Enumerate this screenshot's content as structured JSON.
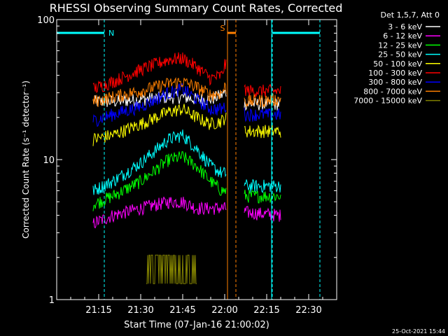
{
  "chart_data": {
    "type": "line",
    "title": "RHESSI Observing Summary Count Rates, Corrected",
    "xlabel": "Start Time (07-Jan-16 21:00:02)",
    "ylabel": "Corrected Count Rate (s⁻¹ detector⁻¹)",
    "yscale": "log",
    "ylim": [
      1,
      100
    ],
    "xlim_minutes": [
      0,
      100
    ],
    "x_ticks": [
      {
        "m": 15,
        "label": "21:15"
      },
      {
        "m": 30,
        "label": "21:30"
      },
      {
        "m": 45,
        "label": "21:45"
      },
      {
        "m": 60,
        "label": "22:00"
      },
      {
        "m": 75,
        "label": "22:15"
      },
      {
        "m": 90,
        "label": "22:30"
      }
    ],
    "y_ticks": [
      {
        "v": 1,
        "label": "1"
      },
      {
        "v": 10,
        "label": "10"
      },
      {
        "v": 100,
        "label": "100"
      }
    ],
    "legend_title": "Det 1,5,7, Att 0",
    "legend_placement": "top-right outside",
    "series": [
      {
        "name": "3 - 6 keV",
        "color": "#ffffff",
        "points": [
          [
            13,
            26
          ],
          [
            20,
            26
          ],
          [
            30,
            27
          ],
          [
            40,
            28
          ],
          [
            45,
            28
          ],
          [
            50,
            27
          ],
          [
            55,
            27
          ],
          [
            59,
            29
          ],
          [
            60,
            30
          ],
          [
            68,
            25
          ],
          [
            80,
            25
          ]
        ]
      },
      {
        "name": "6 - 12 keV",
        "color": "#ff00ff",
        "points": [
          [
            13,
            3.5
          ],
          [
            20,
            4
          ],
          [
            30,
            4.5
          ],
          [
            40,
            5
          ],
          [
            45,
            5
          ],
          [
            50,
            4.5
          ],
          [
            55,
            4.5
          ],
          [
            59,
            4.5
          ],
          [
            60,
            4.5
          ],
          [
            68,
            4.2
          ],
          [
            80,
            4
          ]
        ]
      },
      {
        "name": "12 - 25 keV",
        "color": "#00ff00",
        "points": [
          [
            13,
            4.8
          ],
          [
            20,
            5.5
          ],
          [
            30,
            7
          ],
          [
            40,
            10
          ],
          [
            45,
            10.5
          ],
          [
            50,
            9
          ],
          [
            55,
            7
          ],
          [
            59,
            6
          ],
          [
            60,
            6
          ],
          [
            68,
            5.5
          ],
          [
            80,
            5.5
          ]
        ]
      },
      {
        "name": "25 - 50 keV",
        "color": "#00ffff",
        "points": [
          [
            13,
            6
          ],
          [
            20,
            7
          ],
          [
            30,
            9.5
          ],
          [
            40,
            14
          ],
          [
            45,
            15
          ],
          [
            50,
            12
          ],
          [
            55,
            9
          ],
          [
            59,
            8
          ],
          [
            60,
            8
          ],
          [
            68,
            6.5
          ],
          [
            80,
            6.5
          ]
        ]
      },
      {
        "name": "50 - 100 keV",
        "color": "#ffff00",
        "points": [
          [
            13,
            14
          ],
          [
            20,
            15
          ],
          [
            30,
            18
          ],
          [
            40,
            22
          ],
          [
            45,
            23
          ],
          [
            50,
            20
          ],
          [
            55,
            18
          ],
          [
            59,
            19
          ],
          [
            60,
            20
          ],
          [
            68,
            16
          ],
          [
            80,
            16
          ]
        ]
      },
      {
        "name": "100 - 300 keV",
        "color": "#ff0000",
        "points": [
          [
            13,
            32
          ],
          [
            20,
            36
          ],
          [
            30,
            44
          ],
          [
            40,
            52
          ],
          [
            45,
            53
          ],
          [
            50,
            46
          ],
          [
            55,
            38
          ],
          [
            59,
            40
          ],
          [
            60,
            48
          ],
          [
            68,
            31
          ],
          [
            80,
            31
          ]
        ]
      },
      {
        "name": "300 - 800 keV",
        "color": "#0000ff",
        "points": [
          [
            13,
            19
          ],
          [
            20,
            21
          ],
          [
            30,
            24
          ],
          [
            40,
            30
          ],
          [
            45,
            32
          ],
          [
            50,
            27
          ],
          [
            55,
            23
          ],
          [
            59,
            23
          ],
          [
            60,
            24
          ],
          [
            68,
            21
          ],
          [
            80,
            21
          ]
        ]
      },
      {
        "name": "800 - 7000 keV",
        "color": "#ff8000",
        "points": [
          [
            13,
            26
          ],
          [
            20,
            28
          ],
          [
            30,
            31
          ],
          [
            40,
            35
          ],
          [
            45,
            36
          ],
          [
            50,
            33
          ],
          [
            55,
            29
          ],
          [
            59,
            30
          ],
          [
            60,
            33
          ],
          [
            68,
            26
          ],
          [
            80,
            27
          ]
        ]
      },
      {
        "name": "7000 - 15000 keV",
        "color": "#808000",
        "points": [
          [
            32,
            1.3
          ],
          [
            38,
            1.3
          ],
          [
            45,
            1.3
          ],
          [
            50,
            1.3
          ]
        ]
      }
    ],
    "annotations": [
      {
        "label": "N",
        "color": "#00ffff",
        "bar_start_m": 0,
        "bar_end_m": 17
      },
      {
        "label": "N",
        "color": "#00ffff",
        "bar_start_m": 77,
        "bar_end_m": 94
      },
      {
        "label": "S",
        "color": "#ff8000",
        "bar_start_m": 61,
        "bar_end_m": 64
      }
    ]
  },
  "footer": {
    "timestamp": "25-Oct-2021 15:44"
  }
}
